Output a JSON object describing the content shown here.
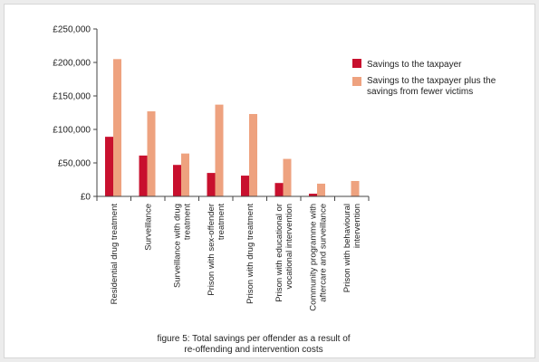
{
  "chart_data": {
    "type": "bar",
    "categories": [
      [
        "Residential drug treatment"
      ],
      [
        "Surveillance"
      ],
      [
        "Surveillance with drug",
        "treatment"
      ],
      [
        "Prison with sex-offender",
        "treatment"
      ],
      [
        "Prison with drug treatment"
      ],
      [
        "Prison with educational or",
        "vocational intervention"
      ],
      [
        "Community programme with",
        "aftercare and surveillance"
      ],
      [
        "Prison with behavioural",
        "intervention"
      ]
    ],
    "series": [
      {
        "name": "Savings to the taxpayer",
        "color": "#c8102e",
        "values": [
          89000,
          61000,
          47000,
          35000,
          31000,
          20000,
          4000,
          0
        ]
      },
      {
        "name": "Savings to the taxpayer plus the savings from fewer victims",
        "legend_lines": [
          "Savings to the taxpayer plus the",
          "savings from fewer victims"
        ],
        "color": "#eea27f",
        "values": [
          205000,
          127000,
          64000,
          137000,
          123000,
          56000,
          19000,
          23000
        ]
      }
    ],
    "yticks": [
      "£0",
      "£50,000",
      "£100,000",
      "£150,000",
      "£200,000",
      "£250,000"
    ],
    "ylim": [
      0,
      250000
    ],
    "legend_position": "right",
    "caption_lines": [
      "figure 5: Total savings per offender as a result of",
      "re-offending and intervention costs"
    ]
  }
}
